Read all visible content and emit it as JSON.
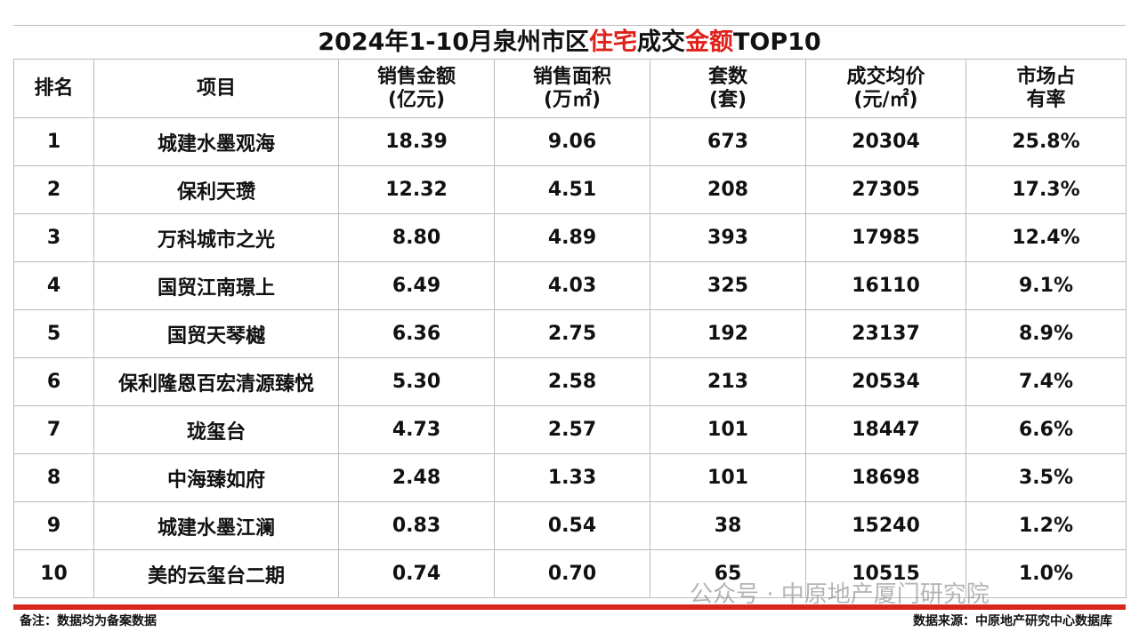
{
  "title": [
    "2024年1-10月泉州市区",
    "住宅",
    "成交",
    "金额",
    "TOP10"
  ],
  "table": {
    "header": [
      [
        "排名"
      ],
      [
        "项目"
      ],
      [
        "销售金额",
        "(亿元)"
      ],
      [
        "销售面积",
        "(万㎡)"
      ],
      [
        "套数",
        "(套)"
      ],
      [
        "成交均价",
        "(元/㎡)"
      ],
      [
        "市场占",
        "有率"
      ]
    ],
    "rows": [
      [
        "1",
        "城建水墨观海",
        "18.39",
        "9.06",
        "673",
        "20304",
        "25.8%"
      ],
      [
        "2",
        "保利天瓒",
        "12.32",
        "4.51",
        "208",
        "27305",
        "17.3%"
      ],
      [
        "3",
        "万科城市之光",
        "8.80",
        "4.89",
        "393",
        "17985",
        "12.4%"
      ],
      [
        "4",
        "国贸江南璟上",
        "6.49",
        "4.03",
        "325",
        "16110",
        "9.1%"
      ],
      [
        "5",
        "国贸天琴樾",
        "6.36",
        "2.75",
        "192",
        "23137",
        "8.9%"
      ],
      [
        "6",
        "保利隆恩百宏清源臻悦",
        "5.30",
        "2.58",
        "213",
        "20534",
        "7.4%"
      ],
      [
        "7",
        "珑玺台",
        "4.73",
        "2.57",
        "101",
        "18447",
        "6.6%"
      ],
      [
        "8",
        "中海臻如府",
        "2.48",
        "1.33",
        "101",
        "18698",
        "3.5%"
      ],
      [
        "9",
        "城建水墨江澜",
        "0.83",
        "0.54",
        "38",
        "15240",
        "1.2%"
      ],
      [
        "10",
        "美的云玺台二期",
        "0.74",
        "0.70",
        "65",
        "10515",
        "1.0%"
      ]
    ]
  },
  "footer": {
    "note": "备注：数据均为备案数据",
    "source": "数据来源：中原地产研究中心数据库"
  },
  "watermark": "公众号 · 中原地产厦门研究院"
}
